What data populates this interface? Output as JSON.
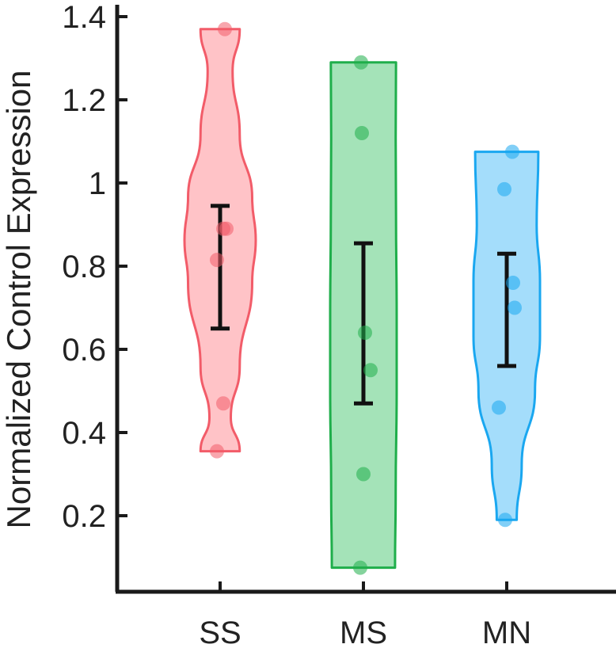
{
  "chart_data": {
    "type": "violin",
    "ylabel": "Normalized Control Expression",
    "categories": [
      "SS",
      "MS",
      "MN"
    ],
    "ylim": [
      0.05,
      1.43
    ],
    "yticks": [
      0.2,
      0.4,
      0.6,
      0.8,
      1,
      1.2,
      1.4
    ],
    "ytick_labels": [
      "0.2",
      "0.4",
      "0.6",
      "0.8",
      "1",
      "1.2",
      "1.4"
    ],
    "grid": false,
    "series": [
      {
        "category": "SS",
        "color": "#f25c69",
        "fill": "#ffc0c4",
        "points": [
          1.37,
          0.89,
          0.89,
          0.815,
          0.47,
          0.355
        ],
        "error_low": 0.65,
        "error_high": 0.945,
        "min": 0.355,
        "max": 1.37
      },
      {
        "category": "MS",
        "color": "#1fae4b",
        "fill": "#9fe2b4",
        "points": [
          1.29,
          1.12,
          0.64,
          0.55,
          0.3,
          0.075
        ],
        "error_low": 0.47,
        "error_high": 0.855,
        "min": 0.075,
        "max": 1.29
      },
      {
        "category": "MN",
        "color": "#1aa7f0",
        "fill": "#9fdbfb",
        "points": [
          1.075,
          0.985,
          0.76,
          0.7,
          0.46,
          0.19
        ],
        "error_low": 0.56,
        "error_high": 0.83,
        "min": 0.19,
        "max": 1.075
      }
    ]
  }
}
